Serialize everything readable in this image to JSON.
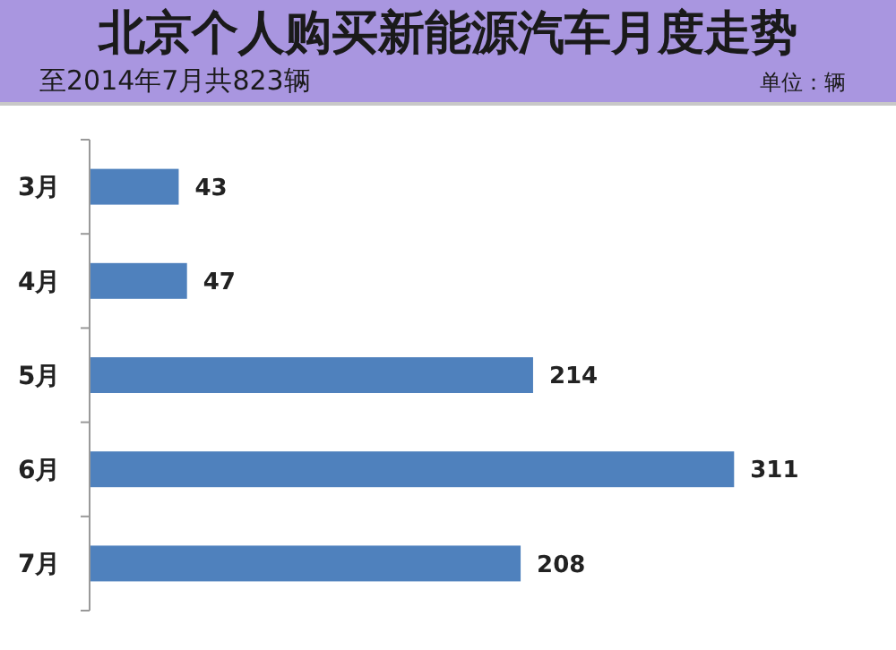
{
  "chart_data": {
    "type": "bar",
    "orientation": "horizontal",
    "title": "北京个人购买新能源汽车月度走势",
    "subtitle": "至2014年7月共823辆",
    "annotations": [
      "单位：辆"
    ],
    "categories": [
      "3月",
      "4月",
      "5月",
      "6月",
      "7月"
    ],
    "values": [
      43,
      47,
      214,
      311,
      208
    ],
    "color": "#4f81bd",
    "data_labels": true,
    "tick_labels": "y"
  }
}
